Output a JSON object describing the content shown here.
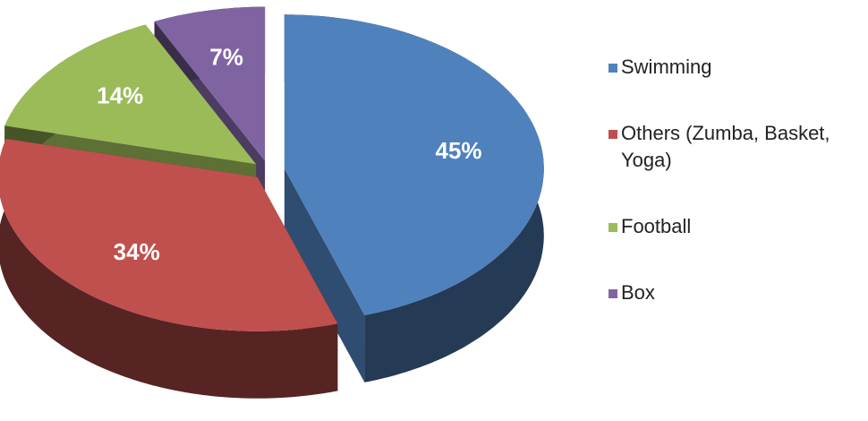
{
  "chart_data": {
    "type": "pie",
    "categories": [
      "Swimming",
      "Others (Zumba, Basket, Yoga)",
      "Football",
      "Box"
    ],
    "values": [
      45,
      34,
      14,
      7
    ],
    "value_labels": [
      "45%",
      "34%",
      "14%",
      "7%"
    ],
    "colors": [
      "#4f81bd",
      "#c0504d",
      "#9bbb59",
      "#8064a2"
    ],
    "legend": "right"
  }
}
